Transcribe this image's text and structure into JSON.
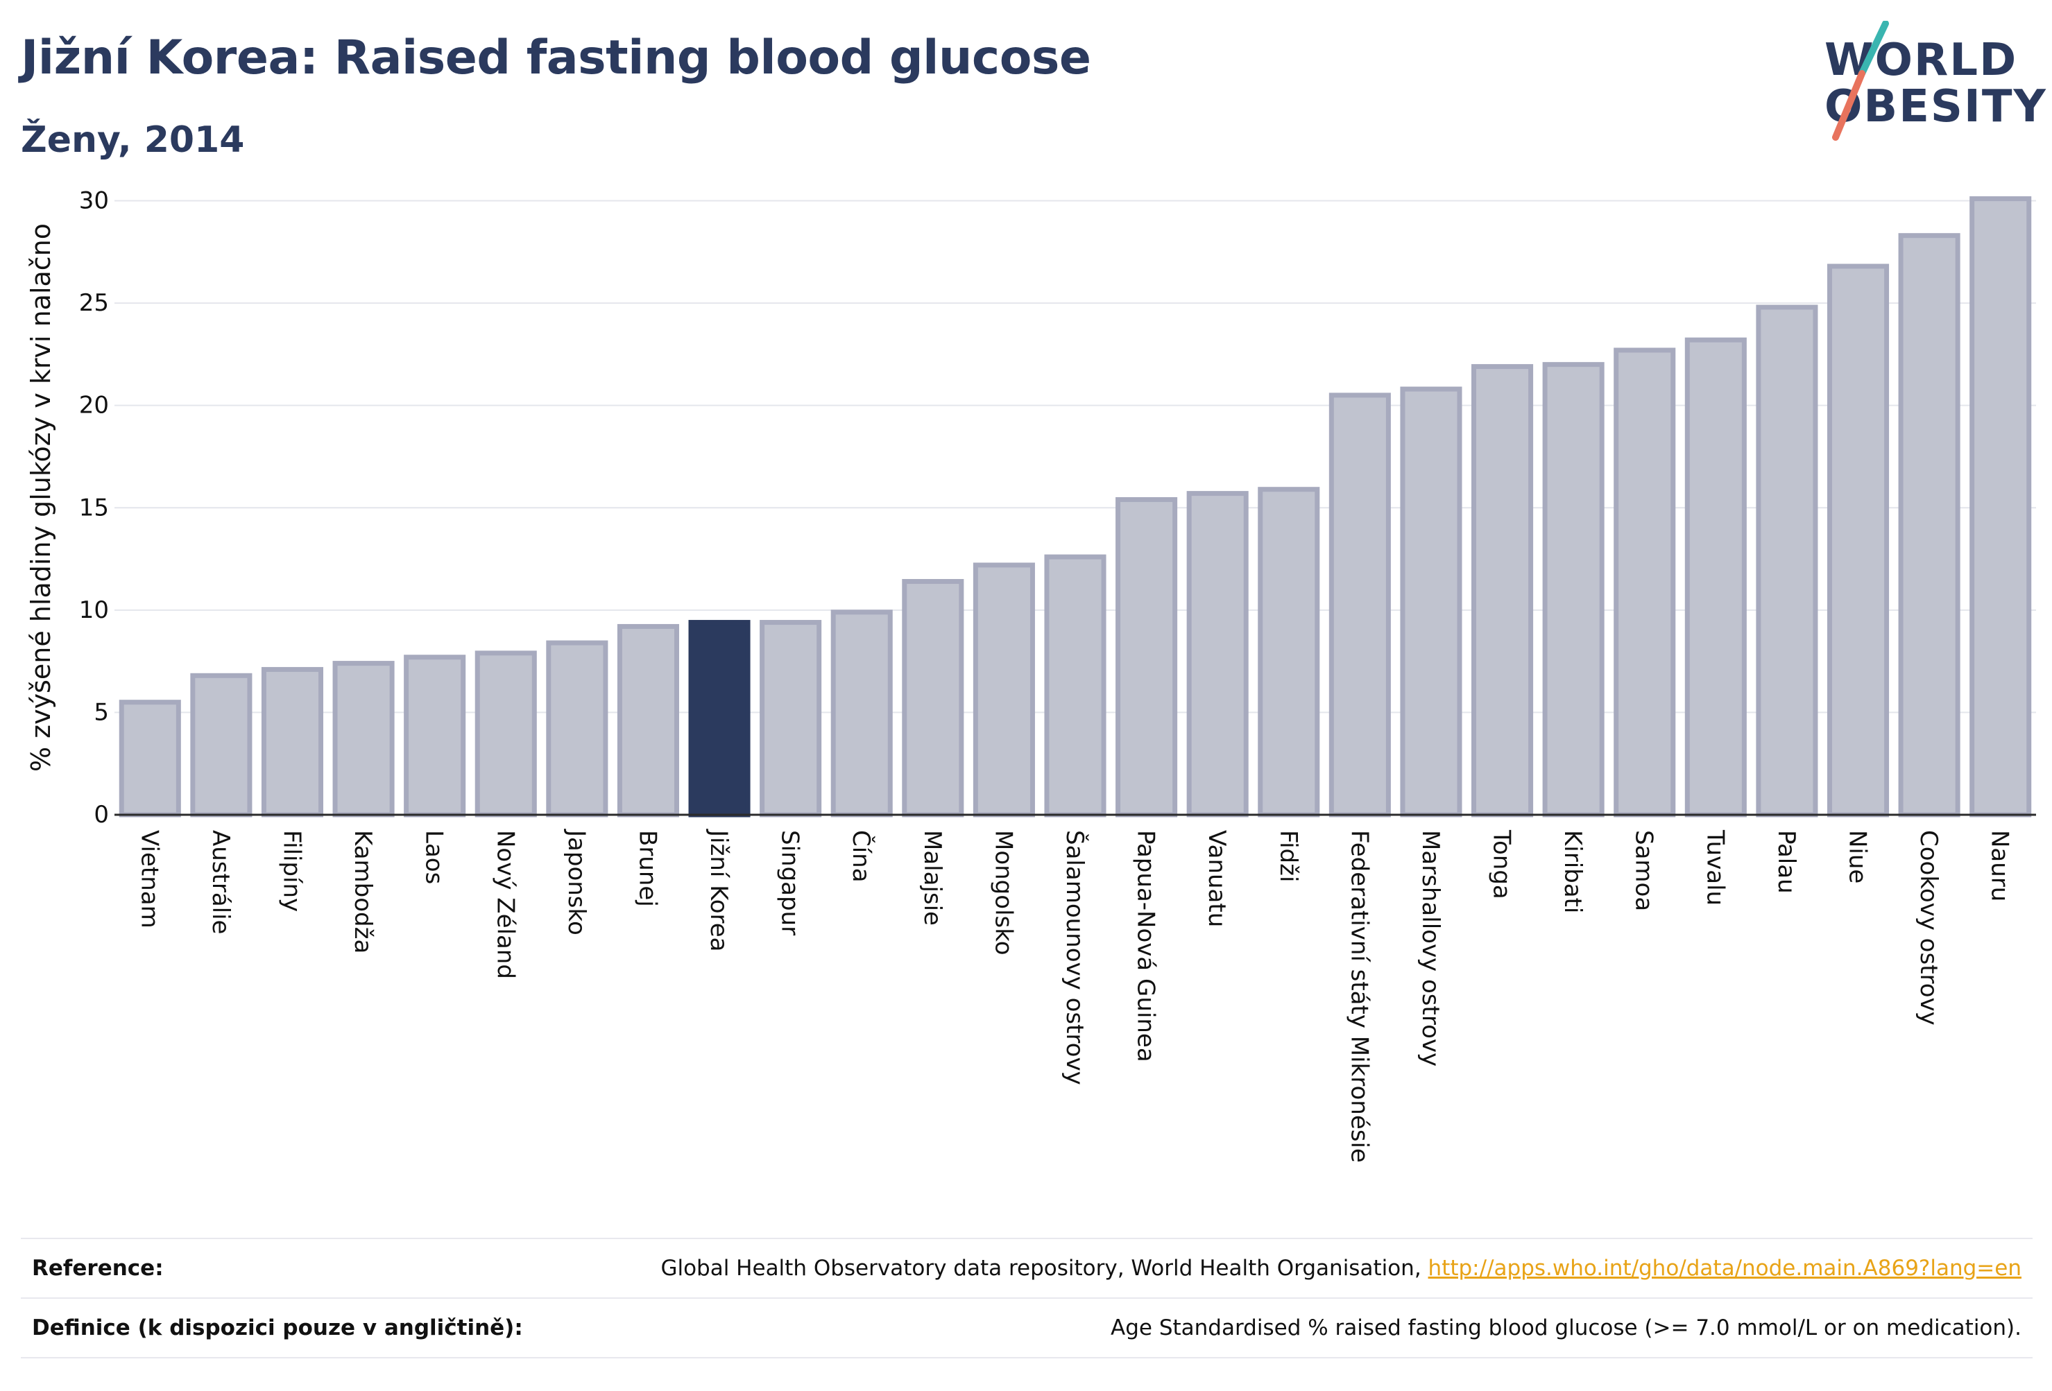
{
  "header": {
    "title": "Jižní Korea: Raised fasting blood glucose",
    "subtitle": "Ženy, 2014"
  },
  "logo": {
    "line1": "WORLD",
    "line2": "OBESITY",
    "alt": "World Obesity logo"
  },
  "colors": {
    "primary": "#2b3a5e",
    "bar_default": "#c0c3cf",
    "bar_stroke": "#a7aabe",
    "bar_highlight": "#2b3a5e",
    "logo_teal": "#3ab5b0",
    "logo_coral": "#e8735d",
    "link": "#e8a317"
  },
  "chart_data": {
    "type": "bar",
    "ylabel": "% zvýšené hladiny glukózy v krvi nalačno",
    "xlabel": "",
    "ylim": [
      0,
      31
    ],
    "yticks": [
      0,
      5,
      10,
      15,
      20,
      25,
      30
    ],
    "grid": true,
    "highlight": "Jižní Korea",
    "categories": [
      "Vietnam",
      "Austrálie",
      "Filipíny",
      "Kambodža",
      "Laos",
      "Nový Zéland",
      "Japonsko",
      "Brunej",
      "Jižní Korea",
      "Singapur",
      "Čína",
      "Malajsie",
      "Mongolsko",
      "Šalamounovy ostrovy",
      "Papua-Nová Guinea",
      "Vanuatu",
      "Fidži",
      "Federativní státy Mikronésie",
      "Marshallovy ostrovy",
      "Tonga",
      "Kiribati",
      "Samoa",
      "Tuvalu",
      "Palau",
      "Niue",
      "Cookovy ostrovy",
      "Nauru"
    ],
    "values": [
      5.5,
      6.8,
      7.1,
      7.4,
      7.7,
      7.9,
      8.4,
      9.2,
      9.4,
      9.4,
      9.9,
      11.4,
      12.2,
      12.6,
      15.4,
      15.7,
      15.9,
      20.5,
      20.8,
      21.9,
      22.0,
      22.7,
      23.2,
      24.8,
      26.8,
      28.3,
      30.1
    ]
  },
  "footer": {
    "reference_label": "Reference:",
    "reference_text": "Global Health Observatory data repository, World Health Organisation, ",
    "reference_link": "http://apps.who.int/gho/data/node.main.A869?lang=en",
    "definition_label": "Definice (k dispozici pouze v angličtině):",
    "definition_text": "Age Standardised % raised fasting blood glucose (>= 7.0 mmol/L or on medication)."
  }
}
